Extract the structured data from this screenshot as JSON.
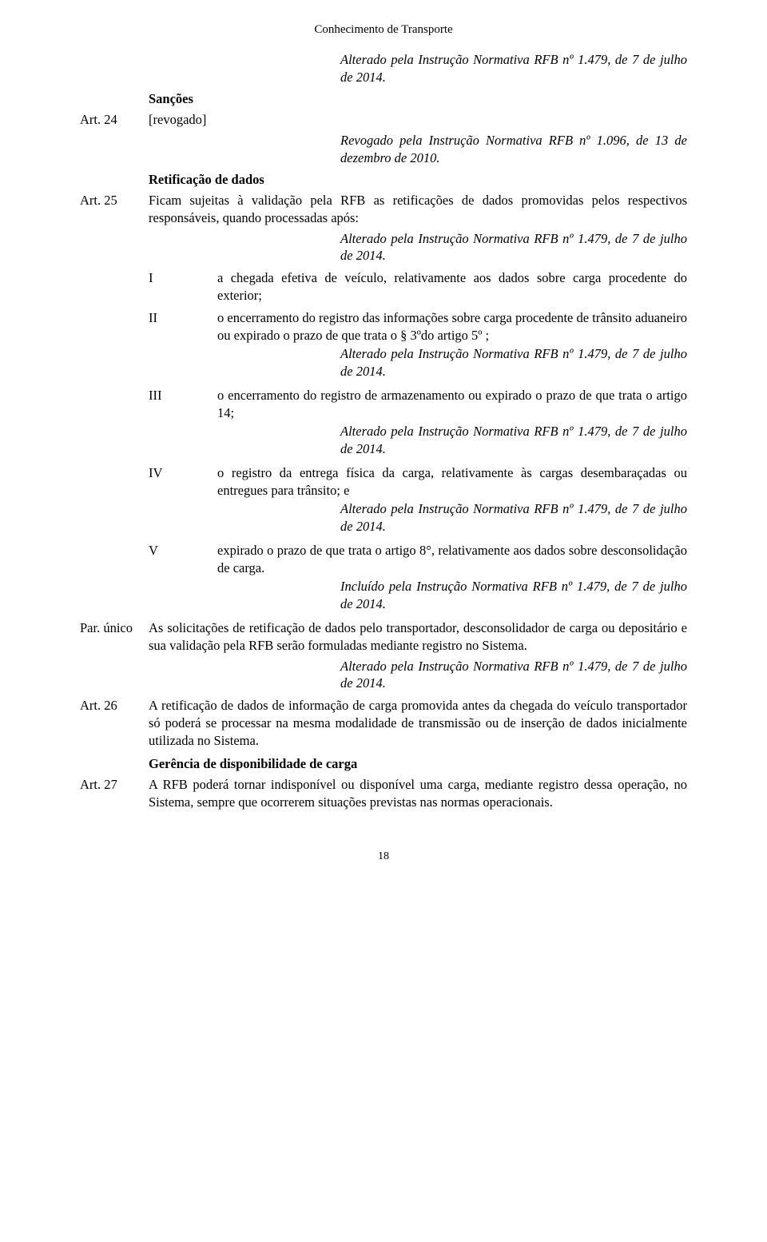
{
  "header": "Conhecimento de Transporte",
  "note_top": "Alterado pela Instrução Normativa RFB nº 1.479, de 7 de julho de 2014.",
  "sancoes_heading": "Sanções",
  "art24": {
    "label": "Art. 24",
    "text": "[revogado]",
    "note": "Revogado pela Instrução Normativa RFB nº 1.096, de 13 de dezembro de 2010."
  },
  "retificacao_heading": "Retificação de dados",
  "art25": {
    "label": "Art. 25",
    "text": "Ficam sujeitas à validação pela RFB as retificações de dados promovidas pelos respectivos responsáveis, quando processadas após:",
    "note": "Alterado pela Instrução Normativa RFB nº 1.479, de 7 de julho de 2014.",
    "items": [
      {
        "roman": "I",
        "text": "a chegada efetiva de veículo, relativamente aos dados sobre carga procedente do exterior;",
        "note": ""
      },
      {
        "roman": "II",
        "text": "o encerramento do registro das informações sobre carga procedente de trânsito aduaneiro ou expirado o prazo de que trata o § 3ºdo artigo 5º ;",
        "note": "Alterado pela Instrução Normativa RFB nº 1.479, de 7 de julho de 2014."
      },
      {
        "roman": "III",
        "text": "o encerramento do registro de armazenamento ou expirado o prazo de que trata o artigo 14;",
        "note": "Alterado pela Instrução Normativa RFB nº 1.479, de 7 de julho de 2014."
      },
      {
        "roman": "IV",
        "text": "o registro da entrega física da carga, relativamente às cargas desembaraçadas ou entregues para trânsito; e",
        "note": "Alterado pela Instrução Normativa RFB nº 1.479, de 7 de julho de 2014."
      },
      {
        "roman": "V",
        "text": "expirado o prazo de que trata o artigo 8°, relativamente aos dados sobre desconsolidação de carga.",
        "note": "Incluído pela Instrução Normativa RFB nº 1.479, de 7 de julho de 2014."
      }
    ]
  },
  "par_unico": {
    "label": "Par. único",
    "text": "As solicitações de retificação de dados pelo transportador, desconsolidador de carga ou depositário e sua validação pela RFB serão formuladas mediante registro no Sistema.",
    "note": "Alterado pela Instrução Normativa RFB nº 1.479, de 7 de julho de 2014."
  },
  "art26": {
    "label": "Art. 26",
    "text": "A retificação de dados de informação de carga promovida antes da chegada do veículo transportador só poderá se processar na mesma modalidade de transmissão ou de inserção de dados inicialmente utilizada no Sistema."
  },
  "gerencia_heading": "Gerência de disponibilidade de carga",
  "art27": {
    "label": "Art. 27",
    "text": "A RFB poderá tornar indisponível ou disponível uma carga, mediante registro dessa operação, no Sistema, sempre que ocorrerem situações previstas nas normas operacionais."
  },
  "page_number": "18"
}
